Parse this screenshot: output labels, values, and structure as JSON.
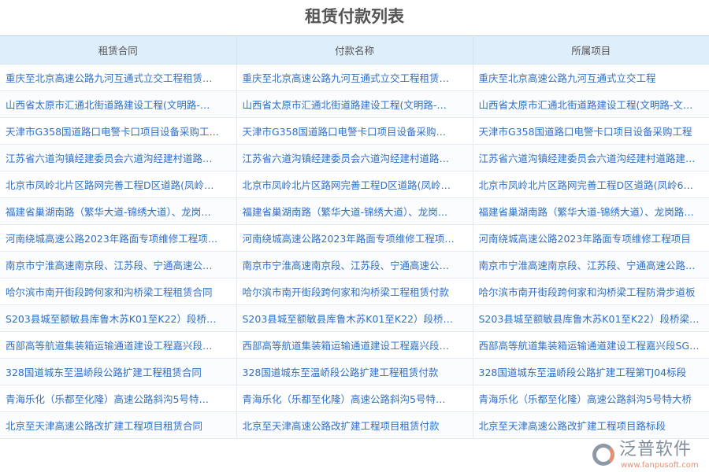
{
  "title": "租赁付款列表",
  "columns": [
    "租赁合同",
    "付款名称",
    "所属项目"
  ],
  "rows": [
    [
      "重庆至北京高速公路九河互通式立交工程租赁…",
      "重庆至北京高速公路九河互通式立交工程租赁…",
      "重庆至北京高速公路九河互通式立交工程"
    ],
    [
      "山西省太原市汇通北街道路建设工程(文明路-…",
      "山西省太原市汇通北街道路建设工程(文明路-…",
      "山西省太原市汇通北街道路建设工程(文明路-文…"
    ],
    [
      "天津市G358国道路口电警卡口项目设备采购工…",
      "天津市G358国道路口电警卡口项目设备采购…",
      "天津市G358国道路口电警卡口项目设备采购工程"
    ],
    [
      "江苏省六道沟镇经建委员会六道沟经建村道路…",
      "江苏省六道沟镇经建委员会六道沟经建村道路…",
      "江苏省六道沟镇经建委员会六道沟经建村道路建…"
    ],
    [
      "北京市凤岭北片区路网完善工程D区道路(凤岭…",
      "北京市凤岭北片区路网完善工程D区道路(凤岭…",
      "北京市凤岭北片区路网完善工程D区道路(凤岭6…"
    ],
    [
      "福建省巢湖南路（繁华大道-锦绣大道）、龙岗…",
      "福建省巢湖南路（繁华大道-锦绣大道）、龙岗…",
      "福建省巢湖南路（繁华大道-锦绣大道）、龙岗路…"
    ],
    [
      "河南绕城高速公路2023年路面专项维修工程项…",
      "河南绕城高速公路2023年路面专项维修工程项…",
      "河南绕城高速公路2023年路面专项维修工程项目"
    ],
    [
      "南京市宁淮高速南京段、江苏段、宁通高速公…",
      "南京市宁淮高速南京段、江苏段、宁通高速公…",
      "南京市宁淮高速南京段、江苏段、宁通高速公路…"
    ],
    [
      "哈尔滨市南开街段跨何家和沟桥梁工程租赁合同",
      "哈尔滨市南开街段跨何家和沟桥梁工程租赁付款",
      "哈尔滨市南开街段跨何家和沟桥梁工程防滑步道板"
    ],
    [
      "S203县城至额敏县库鲁木苏K01至K22）段桥…",
      "S203县城至额敏县库鲁木苏K01至K22）段桥…",
      "S203县城至额敏县库鲁木苏K01至K22）段桥梁…"
    ],
    [
      "西部高等航道集装箱运输通道建设工程嘉兴段…",
      "西部高等航道集装箱运输通道建设工程嘉兴段…",
      "西部高等航道集装箱运输通道建设工程嘉兴段SG…"
    ],
    [
      "328国道城东至温峤段公路扩建工程租赁合同",
      "328国道城东至温峤段公路扩建工程租赁付款",
      "328国道城东至温峤段公路扩建工程第TJ04标段"
    ],
    [
      "青海乐化（乐都至化隆）高速公路斜沟5号特…",
      "青海乐化（乐都至化隆）高速公路斜沟5号特…",
      "青海乐化（乐都至化隆）高速公路斜沟5号特大桥"
    ],
    [
      "北京至天津高速公路改扩建工程项目租赁合同",
      "北京至天津高速公路改扩建工程项目租赁付款",
      "北京至天津高速公路改扩建工程项目路标段"
    ]
  ],
  "watermark": {
    "text": "泛普软件",
    "url": "www.fanpusoft.com"
  },
  "colors": {
    "link": "#2f6fc4",
    "header_bg": "#deeefb"
  }
}
